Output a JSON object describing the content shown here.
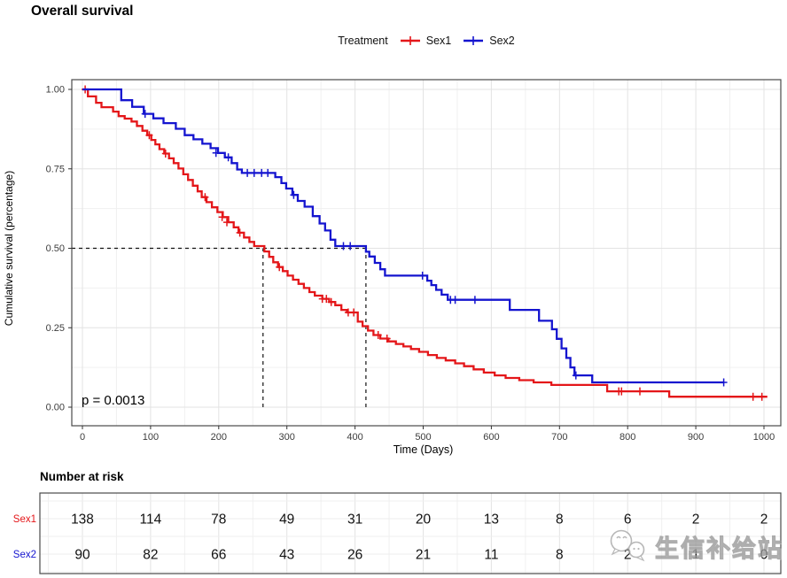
{
  "title": "Overall survival",
  "legend": {
    "title": "Treatment",
    "series": [
      {
        "label": "Sex1",
        "color": "#e41619"
      },
      {
        "label": "Sex2",
        "color": "#1414cf"
      }
    ]
  },
  "pvalue_label": "p = 0.0013",
  "watermark": {
    "text": "生信补给站",
    "icon": "chat-bubbles-icon"
  },
  "risk_table": {
    "heading": "Number at risk"
  },
  "chart_data": [
    {
      "type": "line",
      "subtype": "kaplan-meier-step",
      "title": "Overall survival",
      "xlabel": "Time (Days)",
      "ylabel": "Cumulative survival (percentage)",
      "xlim": [
        0,
        1025
      ],
      "ylim": [
        0,
        1
      ],
      "xticks": [
        0,
        100,
        200,
        300,
        400,
        500,
        600,
        700,
        800,
        900,
        1000
      ],
      "yticks": [
        "1.00",
        "0.75",
        "0.50",
        "0.25",
        "0.00"
      ],
      "ytick_values": [
        1.0,
        0.75,
        0.5,
        0.25,
        0.0
      ],
      "grid": "major+minor",
      "legend_position": "top",
      "annotations": {
        "pvalue": "p = 0.0013"
      },
      "reference_lines": {
        "horizontal_at": 0.5,
        "vertical_at_days": [
          265,
          416
        ]
      },
      "median_survival_days": {
        "Sex1": 265,
        "Sex2": 416
      },
      "series": [
        {
          "name": "Sex1",
          "color": "#e41619",
          "points": [
            [
              0,
              1.0
            ],
            [
              8,
              0.978
            ],
            [
              20,
              0.958
            ],
            [
              28,
              0.944
            ],
            [
              45,
              0.93
            ],
            [
              53,
              0.916
            ],
            [
              62,
              0.908
            ],
            [
              72,
              0.899
            ],
            [
              80,
              0.885
            ],
            [
              88,
              0.87
            ],
            [
              95,
              0.856
            ],
            [
              101,
              0.841
            ],
            [
              107,
              0.827
            ],
            [
              113,
              0.812
            ],
            [
              120,
              0.798
            ],
            [
              127,
              0.783
            ],
            [
              134,
              0.768
            ],
            [
              141,
              0.751
            ],
            [
              148,
              0.733
            ],
            [
              155,
              0.715
            ],
            [
              162,
              0.697
            ],
            [
              169,
              0.679
            ],
            [
              175,
              0.661
            ],
            [
              182,
              0.645
            ],
            [
              190,
              0.629
            ],
            [
              198,
              0.614
            ],
            [
              206,
              0.598
            ],
            [
              214,
              0.582
            ],
            [
              222,
              0.566
            ],
            [
              229,
              0.549
            ],
            [
              237,
              0.534
            ],
            [
              245,
              0.52
            ],
            [
              252,
              0.507
            ],
            [
              267,
              0.49
            ],
            [
              274,
              0.473
            ],
            [
              280,
              0.456
            ],
            [
              287,
              0.441
            ],
            [
              294,
              0.428
            ],
            [
              301,
              0.414
            ],
            [
              309,
              0.401
            ],
            [
              317,
              0.388
            ],
            [
              325,
              0.375
            ],
            [
              333,
              0.362
            ],
            [
              341,
              0.351
            ],
            [
              352,
              0.341
            ],
            [
              362,
              0.331
            ],
            [
              371,
              0.321
            ],
            [
              380,
              0.306
            ],
            [
              388,
              0.298
            ],
            [
              404,
              0.269
            ],
            [
              411,
              0.255
            ],
            [
              419,
              0.241
            ],
            [
              427,
              0.227
            ],
            [
              437,
              0.216
            ],
            [
              449,
              0.207
            ],
            [
              460,
              0.199
            ],
            [
              471,
              0.191
            ],
            [
              482,
              0.183
            ],
            [
              494,
              0.174
            ],
            [
              507,
              0.164
            ],
            [
              520,
              0.155
            ],
            [
              533,
              0.147
            ],
            [
              547,
              0.138
            ],
            [
              560,
              0.129
            ],
            [
              574,
              0.119
            ],
            [
              589,
              0.109
            ],
            [
              605,
              0.1
            ],
            [
              621,
              0.092
            ],
            [
              641,
              0.085
            ],
            [
              662,
              0.078
            ],
            [
              688,
              0.07
            ],
            [
              770,
              0.05
            ],
            [
              861,
              0.033
            ],
            [
              1005,
              0.033
            ]
          ],
          "censored": [
            [
              4,
              1.0
            ],
            [
              98,
              0.856
            ],
            [
              122,
              0.798
            ],
            [
              180,
              0.661
            ],
            [
              205,
              0.598
            ],
            [
              212,
              0.582
            ],
            [
              231,
              0.549
            ],
            [
              289,
              0.441
            ],
            [
              352,
              0.341
            ],
            [
              358,
              0.341
            ],
            [
              365,
              0.331
            ],
            [
              390,
              0.298
            ],
            [
              398,
              0.298
            ],
            [
              434,
              0.227
            ],
            [
              447,
              0.216
            ],
            [
              787,
              0.05
            ],
            [
              791,
              0.05
            ],
            [
              818,
              0.05
            ],
            [
              984,
              0.033
            ],
            [
              997,
              0.033
            ]
          ]
        },
        {
          "name": "Sex2",
          "color": "#1414cf",
          "points": [
            [
              0,
              1.0
            ],
            [
              57,
              0.966
            ],
            [
              73,
              0.945
            ],
            [
              90,
              0.923
            ],
            [
              104,
              0.909
            ],
            [
              119,
              0.894
            ],
            [
              137,
              0.876
            ],
            [
              150,
              0.856
            ],
            [
              163,
              0.843
            ],
            [
              176,
              0.829
            ],
            [
              188,
              0.815
            ],
            [
              199,
              0.8
            ],
            [
              209,
              0.786
            ],
            [
              219,
              0.768
            ],
            [
              227,
              0.748
            ],
            [
              234,
              0.737
            ],
            [
              283,
              0.724
            ],
            [
              292,
              0.705
            ],
            [
              299,
              0.688
            ],
            [
              308,
              0.668
            ],
            [
              316,
              0.649
            ],
            [
              326,
              0.631
            ],
            [
              338,
              0.601
            ],
            [
              348,
              0.578
            ],
            [
              356,
              0.556
            ],
            [
              364,
              0.527
            ],
            [
              371,
              0.507
            ],
            [
              416,
              0.489
            ],
            [
              421,
              0.474
            ],
            [
              429,
              0.454
            ],
            [
              437,
              0.434
            ],
            [
              444,
              0.414
            ],
            [
              506,
              0.398
            ],
            [
              512,
              0.384
            ],
            [
              519,
              0.369
            ],
            [
              527,
              0.354
            ],
            [
              536,
              0.338
            ],
            [
              627,
              0.306
            ],
            [
              670,
              0.272
            ],
            [
              689,
              0.245
            ],
            [
              696,
              0.215
            ],
            [
              703,
              0.185
            ],
            [
              710,
              0.155
            ],
            [
              716,
              0.125
            ],
            [
              722,
              0.1
            ],
            [
              748,
              0.078
            ],
            [
              941,
              0.078
            ]
          ],
          "censored": [
            [
              92,
              0.923
            ],
            [
              196,
              0.8
            ],
            [
              214,
              0.786
            ],
            [
              242,
              0.737
            ],
            [
              252,
              0.737
            ],
            [
              263,
              0.737
            ],
            [
              272,
              0.737
            ],
            [
              310,
              0.668
            ],
            [
              383,
              0.507
            ],
            [
              393,
              0.507
            ],
            [
              499,
              0.414
            ],
            [
              540,
              0.338
            ],
            [
              547,
              0.338
            ],
            [
              576,
              0.338
            ],
            [
              724,
              0.1
            ],
            [
              941,
              0.078
            ]
          ]
        }
      ]
    },
    {
      "type": "table",
      "title": "Number at risk",
      "x_days": [
        0,
        100,
        200,
        300,
        400,
        500,
        600,
        700,
        800,
        900,
        1000
      ],
      "rows": [
        {
          "name": "Sex1",
          "color": "#e41619",
          "values": [
            138,
            114,
            78,
            49,
            31,
            20,
            13,
            8,
            6,
            2,
            2
          ]
        },
        {
          "name": "Sex2",
          "color": "#1414cf",
          "values": [
            90,
            82,
            66,
            43,
            26,
            21,
            11,
            8,
            2,
            1,
            0
          ]
        }
      ]
    }
  ]
}
